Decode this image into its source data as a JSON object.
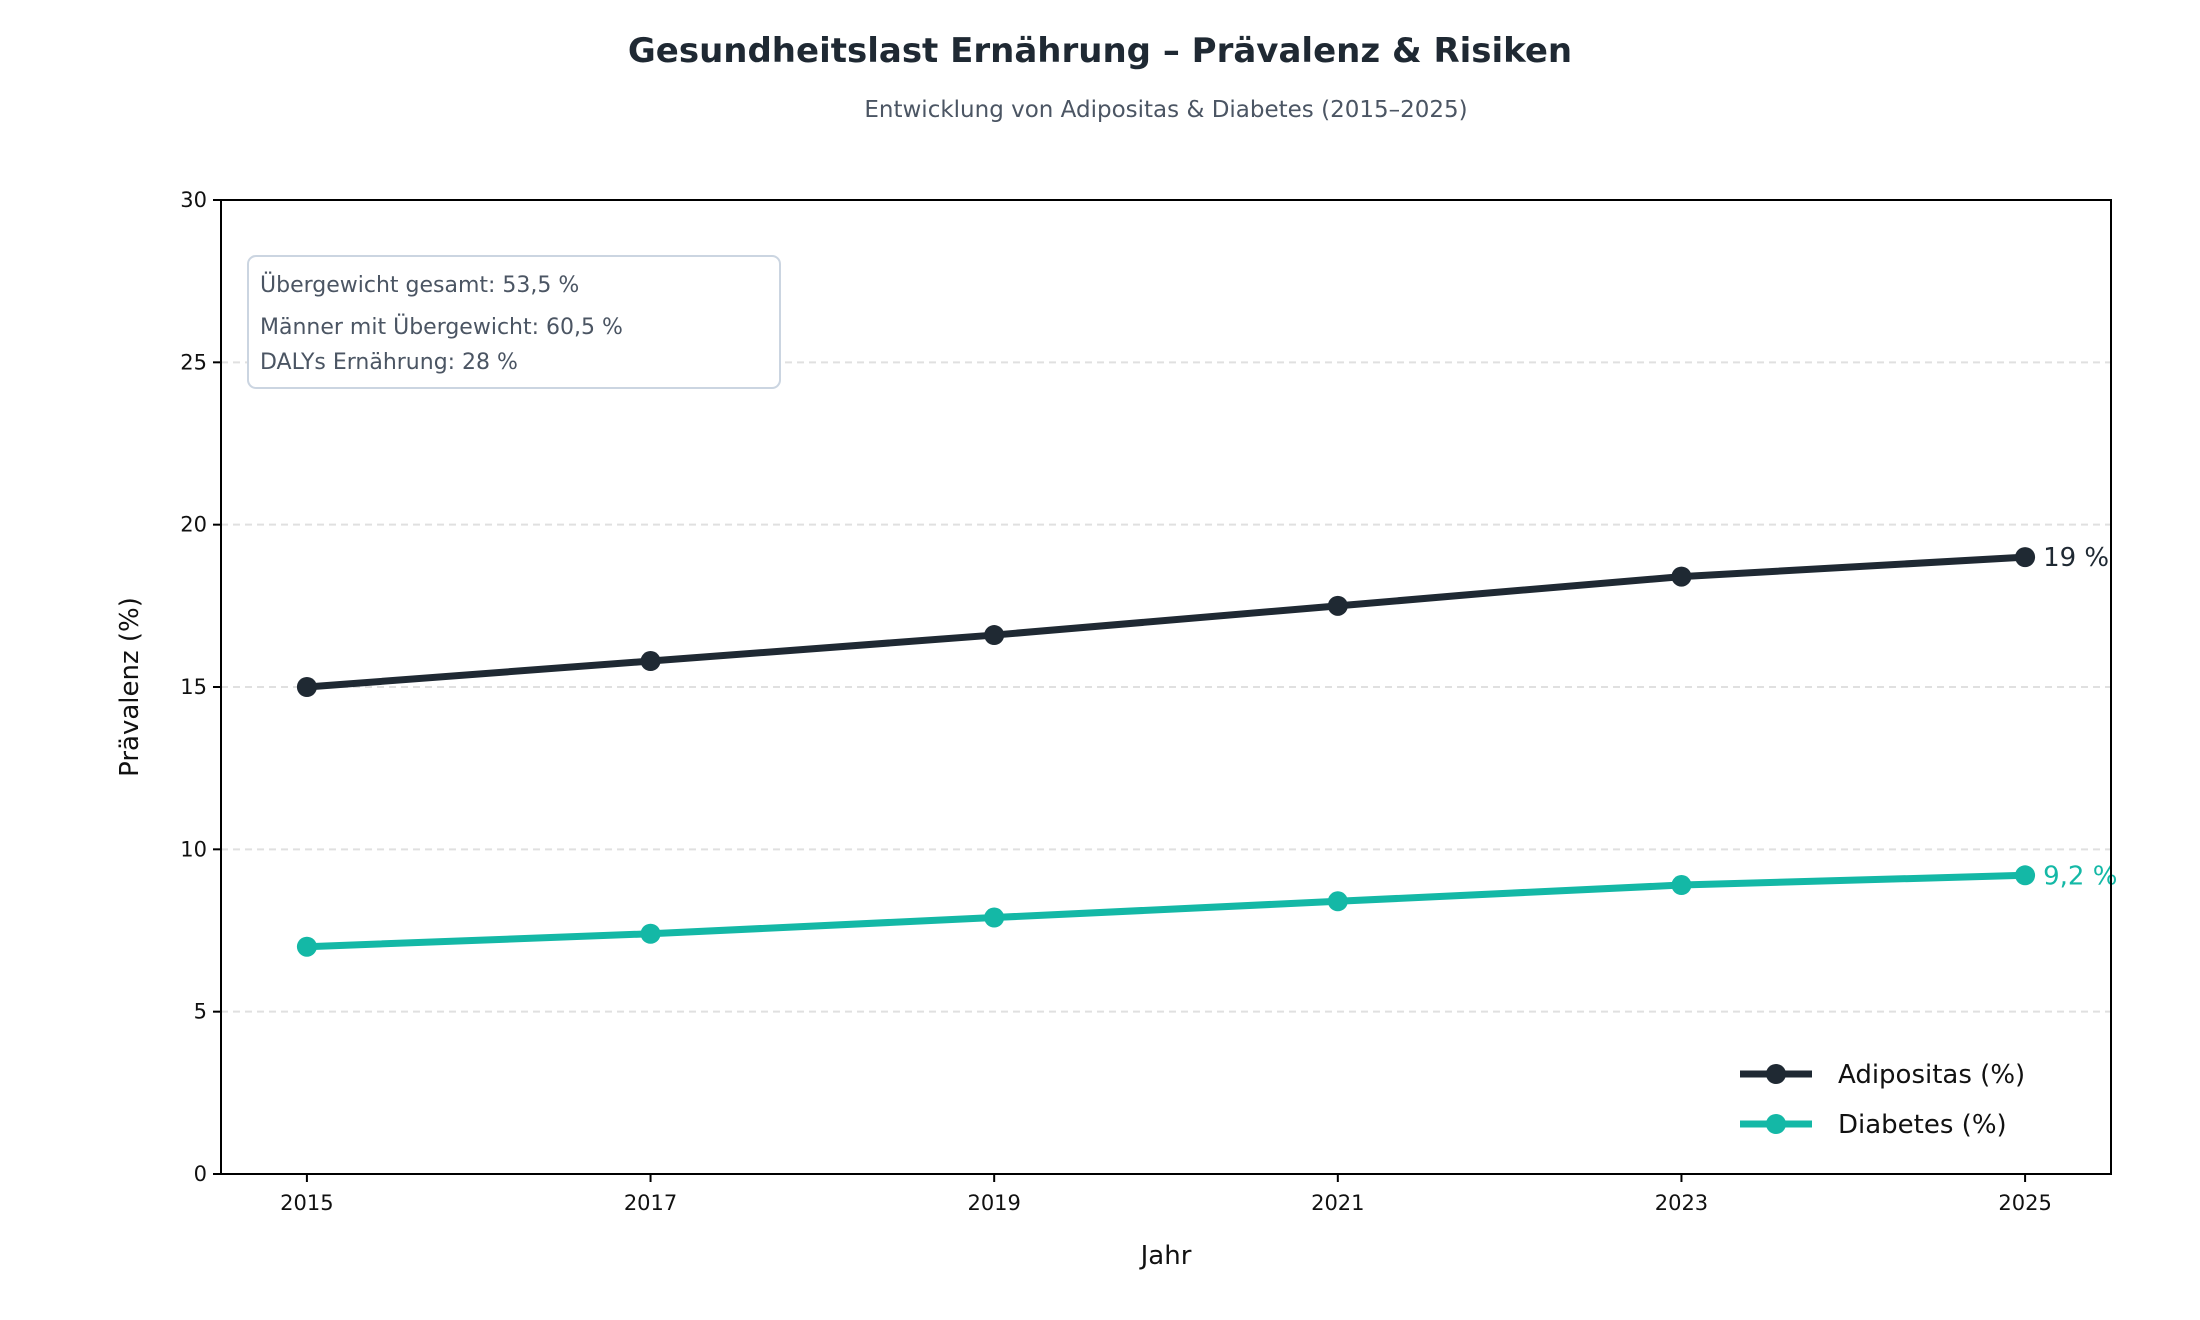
{
  "chart_data": {
    "type": "line",
    "title": "Gesundheitslast Ernährung – Prävalenz & Risiken",
    "subtitle": "Entwicklung von Adipositas & Diabetes (2015–2025)",
    "xlabel": "Jahr",
    "ylabel": "Prävalenz (%)",
    "x": [
      2015,
      2017,
      2019,
      2021,
      2023,
      2025
    ],
    "x_ticks": [
      "2015",
      "2017",
      "2019",
      "2021",
      "2023",
      "2025"
    ],
    "xlim": [
      2014.5,
      2025.5
    ],
    "ylim": [
      0,
      30
    ],
    "y_ticks": [
      "0",
      "5",
      "10",
      "15",
      "20",
      "25",
      "30"
    ],
    "grid": "horizontal dashed",
    "legend_position": "lower-right",
    "series": [
      {
        "name": "Adipositas (%)",
        "color": "#1f2933",
        "values": [
          15,
          15.8,
          16.6,
          17.5,
          18.4,
          19
        ],
        "end_label": "19 %"
      },
      {
        "name": "Diabetes (%)",
        "color": "#14b8a6",
        "values": [
          7.0,
          7.4,
          7.9,
          8.4,
          8.9,
          9.2
        ],
        "end_label": "9,2 %"
      }
    ],
    "annotation_box": [
      "Übergewicht gesamt: 53,5 %",
      "Männer mit Übergewicht: 60,5 %",
      "DALYs Ernährung: 28 %"
    ]
  }
}
